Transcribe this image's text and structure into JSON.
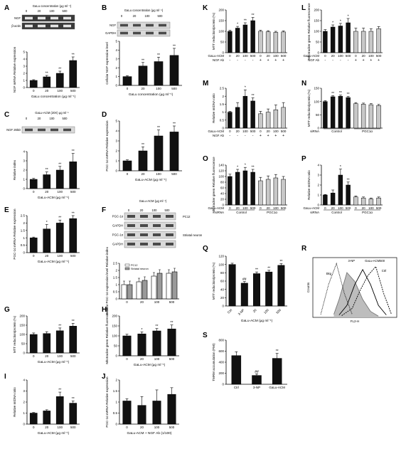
{
  "figure": {
    "note": ""
  },
  "colors": {
    "black_bar": "#111111",
    "gray_bar": "#c8c8c8",
    "gel_bg": "#3a3a3a",
    "gel_band": "#e6e6e6",
    "blot_bg": "#d9d9d9",
    "blot_band": "#4a4a4a"
  },
  "chart_data": [
    {
      "panel": "A",
      "type": "bar",
      "title": "GaLu concentration (μg ml⁻¹)",
      "gel_labels": [
        "NGF",
        "β-actin"
      ],
      "lane_labels": [
        "0",
        "20",
        "100",
        "500"
      ],
      "categories": [
        "0",
        "20",
        "100",
        "500"
      ],
      "values": [
        1.0,
        1.5,
        2.0,
        3.8
      ],
      "errors": [
        0.1,
        0.2,
        0.3,
        0.5
      ],
      "stars": [
        "",
        "**",
        "**",
        "**"
      ],
      "ylabel": "NGF mRNA Relative expression",
      "xlabel": "GaLu concentration (μg ml⁻¹)",
      "ylim": [
        0,
        5
      ],
      "yticks": [
        0,
        1,
        2,
        3,
        4,
        5
      ]
    },
    {
      "panel": "B",
      "type": "bar",
      "title": "GaLu concentration (μg ml⁻¹)",
      "gel_labels": [
        "NGF",
        "GAPDH"
      ],
      "lane_labels": [
        "0",
        "20",
        "100",
        "500"
      ],
      "categories": [
        "0",
        "20",
        "100",
        "500"
      ],
      "values": [
        1.0,
        2.2,
        2.7,
        3.4
      ],
      "errors": [
        0.1,
        0.4,
        0.5,
        0.8
      ],
      "stars": [
        "",
        "**",
        "**",
        "**"
      ],
      "ylabel": "Cellular NGF expression level",
      "xlabel": "GaLu concentration (μg ml⁻¹)",
      "ylim": [
        0,
        5
      ],
      "yticks": [
        0,
        1,
        2,
        3,
        4,
        5
      ]
    },
    {
      "panel": "C",
      "type": "bar",
      "title": "GaLu-ACM (20X) μg ml⁻¹",
      "gel_labels": [
        "NGF 26kD"
      ],
      "lane_labels": [
        "0",
        "20",
        "100",
        "500"
      ],
      "categories": [
        "0",
        "20",
        "100",
        "500"
      ],
      "values": [
        1.0,
        1.5,
        2.0,
        2.9
      ],
      "errors": [
        0.1,
        0.3,
        0.4,
        0.9
      ],
      "stars": [
        "",
        "**",
        "**",
        "**"
      ],
      "ylabel": "Relative index",
      "xlabel": "GaLu-ACM (μg ml⁻¹)",
      "ylim": [
        0,
        4
      ],
      "yticks": [
        0,
        1,
        2,
        3,
        4
      ]
    },
    {
      "panel": "D",
      "type": "bar",
      "title": "",
      "categories": [
        "0",
        "20",
        "100",
        "500"
      ],
      "values": [
        1.0,
        2.0,
        3.5,
        3.9
      ],
      "errors": [
        0.1,
        0.4,
        0.6,
        0.6
      ],
      "stars": [
        "",
        "**",
        "**",
        "**"
      ],
      "ylabel": "PGC-1α mRNA Relative expression",
      "xlabel": "GaLu-ACM (μg ml⁻¹)",
      "ylim": [
        0,
        5
      ],
      "yticks": [
        0,
        1,
        2,
        3,
        4,
        5
      ]
    },
    {
      "panel": "E",
      "type": "bar",
      "title": "",
      "categories": [
        "0",
        "20",
        "100",
        "500"
      ],
      "values": [
        1.0,
        1.6,
        2.0,
        2.3
      ],
      "errors": [
        0.05,
        0.3,
        0.2,
        0.2
      ],
      "stars": [
        "",
        "*",
        "**",
        "**"
      ],
      "ylabel": "PGC-1α mRNA Relative expression",
      "xlabel": "GaLu-ACM (μg ml⁻¹)",
      "ylim": [
        0,
        2.5
      ],
      "yticks": [
        0,
        0.5,
        1,
        1.5,
        2,
        2.5
      ]
    },
    {
      "panel": "F",
      "type": "bar",
      "title": "GaLu-ACM (μg ml⁻¹)",
      "gel_labels": [
        "PGC-1α",
        "GAPDH",
        "PGC-1α",
        "GAPDH"
      ],
      "lane_labels": [
        "0",
        "20",
        "100",
        "500"
      ],
      "blot_groups": [
        "PC12",
        "Striatal neuron"
      ],
      "categories": [
        "0",
        "20",
        "100",
        "500"
      ],
      "series": [
        {
          "name": "PC12",
          "values": [
            1.0,
            1.2,
            1.6,
            1.8
          ]
        },
        {
          "name": "Striatal neuron",
          "values": [
            1.0,
            1.3,
            1.8,
            1.9
          ]
        }
      ],
      "ylabel": "Cellular PGC-1α expression level Relative index",
      "xlabel": "",
      "ylim": [
        0,
        2.5
      ],
      "yticks": [
        0,
        0.5,
        1,
        1.5,
        2,
        2.5
      ]
    },
    {
      "panel": "G",
      "type": "bar",
      "title": "",
      "categories": [
        "0",
        "20",
        "100",
        "500"
      ],
      "values": [
        100,
        105,
        120,
        145
      ],
      "errors": [
        8,
        10,
        15,
        15
      ],
      "stars": [
        "",
        "",
        "**",
        "**"
      ],
      "ylabel": "MTT reduction/protein (%)",
      "xlabel": "GaLu-ACM (μg ml⁻¹)",
      "ylim": [
        0,
        200
      ],
      "yticks": [
        0,
        50,
        100,
        150,
        200
      ]
    },
    {
      "panel": "H",
      "type": "bar",
      "title": "",
      "categories": [
        "0",
        "20",
        "100",
        "500"
      ],
      "values": [
        100,
        110,
        125,
        135
      ],
      "errors": [
        8,
        10,
        12,
        20
      ],
      "stars": [
        "",
        "*",
        "**",
        "**"
      ],
      "ylabel": "Mitotracker green Relative fluorescence",
      "xlabel": "GaLu-ACM (μg ml⁻¹)",
      "ylim": [
        0,
        200
      ],
      "yticks": [
        0,
        50,
        100,
        150,
        200
      ]
    },
    {
      "panel": "I",
      "type": "bar",
      "title": "",
      "categories": [
        "0",
        "20",
        "100",
        "500"
      ],
      "values": [
        1.0,
        1.2,
        2.5,
        1.9
      ],
      "errors": [
        0.05,
        0.1,
        0.4,
        0.2
      ],
      "stars": [
        "",
        "",
        "**",
        "**"
      ],
      "ylabel": "Relative mtDNA ratio",
      "xlabel": "GaLu-ACM (μg ml⁻¹)",
      "ylim": [
        0,
        4
      ],
      "yticks": [
        0,
        1,
        2,
        3,
        4
      ]
    },
    {
      "panel": "J",
      "type": "bar",
      "title": "",
      "categories": [
        "0",
        "20",
        "100",
        "500"
      ],
      "values": [
        1.05,
        0.85,
        1.05,
        1.35
      ],
      "errors": [
        0.1,
        0.4,
        0.5,
        0.3
      ],
      "ylabel": "PGC-1α mRNA Relative expression",
      "xlabel": "GaLu-ACM + NGF Ab (1/100)",
      "ylim": [
        0,
        2
      ],
      "yticks": [
        0,
        0.5,
        1,
        1.5,
        2
      ]
    },
    {
      "panel": "K",
      "type": "bar",
      "title": "",
      "categories": [
        "0",
        "20",
        "100",
        "500",
        "0",
        "20",
        "100",
        "500"
      ],
      "values": [
        100,
        115,
        130,
        150,
        100,
        98,
        95,
        97
      ],
      "errors": [
        5,
        8,
        10,
        15,
        5,
        5,
        5,
        5
      ],
      "stars": [
        "",
        "*",
        "**",
        "**",
        "",
        "",
        "",
        ""
      ],
      "ylabel": "MTT reduction/protein (%)",
      "row_labels": [
        "GaLu-ACM",
        "NGF Ab"
      ],
      "ab_marks": [
        "-",
        "-",
        "-",
        "-",
        "+",
        "+",
        "+",
        "+"
      ],
      "ylim": [
        0,
        200
      ],
      "yticks": [
        0,
        50,
        100,
        150,
        200
      ]
    },
    {
      "panel": "L",
      "type": "bar",
      "title": "",
      "categories": [
        "0",
        "20",
        "100",
        "500",
        "0",
        "20",
        "100",
        "500"
      ],
      "values": [
        100,
        120,
        125,
        140,
        100,
        100,
        100,
        112
      ],
      "errors": [
        8,
        10,
        12,
        20,
        15,
        15,
        12,
        10
      ],
      "stars": [
        "",
        "*",
        "*",
        "*",
        "",
        "",
        "",
        ""
      ],
      "ylabel": "Mitotracker green Relative fluorescence",
      "row_labels": [
        "GaLu-ACM",
        "NGF Ab"
      ],
      "ab_marks": [
        "-",
        "-",
        "-",
        "-",
        "+",
        "+",
        "+",
        "+"
      ],
      "ylim": [
        0,
        200
      ],
      "yticks": [
        0,
        50,
        100,
        150,
        200
      ]
    },
    {
      "panel": "M",
      "type": "bar",
      "title": "",
      "categories": [
        "0",
        "20",
        "100",
        "500",
        "0",
        "20",
        "100",
        "500"
      ],
      "values": [
        1.0,
        1.3,
        2.0,
        1.7,
        0.9,
        1.0,
        1.15,
        1.3
      ],
      "errors": [
        0.05,
        0.3,
        0.4,
        0.2,
        0.15,
        0.2,
        0.3,
        0.3
      ],
      "stars": [
        "",
        "",
        "*",
        "**",
        "",
        "",
        "",
        ""
      ],
      "ylabel": "Relative mtDNA ratio",
      "row_labels": [
        "GaLu-ACM",
        "NGF Ab"
      ],
      "ab_marks": [
        "-",
        "-",
        "-",
        "-",
        "+",
        "+",
        "+",
        "+"
      ],
      "ylim": [
        0,
        2.5
      ],
      "yticks": [
        0,
        0.5,
        1,
        1.5,
        2,
        2.5
      ]
    },
    {
      "panel": "N",
      "type": "bar",
      "title": "",
      "categories": [
        "0",
        "20",
        "100",
        "500",
        "0",
        "20",
        "100",
        "500"
      ],
      "values": [
        100,
        118,
        120,
        115,
        92,
        90,
        88,
        85
      ],
      "errors": [
        3,
        4,
        4,
        4,
        4,
        4,
        4,
        4
      ],
      "stars": [
        "",
        "**",
        "**",
        "**",
        "",
        "",
        "",
        ""
      ],
      "ylabel": "MTT reduction/protein (%)",
      "row_labels": [
        "siRNA"
      ],
      "groups": [
        "Control",
        "PGC1α"
      ],
      "ylim": [
        0,
        150
      ],
      "yticks": [
        0,
        50,
        100,
        150
      ]
    },
    {
      "panel": "O",
      "type": "bar",
      "title": "",
      "categories": [
        "0",
        "20",
        "100",
        "500",
        "0",
        "20",
        "100",
        "500"
      ],
      "values": [
        100,
        115,
        120,
        115,
        85,
        90,
        95,
        90
      ],
      "errors": [
        8,
        10,
        12,
        10,
        12,
        12,
        12,
        10
      ],
      "stars": [
        "",
        "*",
        "*",
        "**",
        "",
        "",
        "",
        ""
      ],
      "ylabel": "Mitotracker green Relative fluorescence",
      "row_labels": [
        "GaLu-ACM",
        "siRNA"
      ],
      "groups": [
        "Control",
        "PGC1α"
      ],
      "ylim": [
        0,
        140
      ],
      "yticks": [
        0,
        20,
        40,
        60,
        80,
        100,
        120,
        140
      ]
    },
    {
      "panel": "P",
      "type": "bar",
      "title": "",
      "categories": [
        "0",
        "20",
        "100",
        "500",
        "0",
        "20",
        "100",
        "500"
      ],
      "values": [
        1.0,
        1.2,
        3.0,
        2.0,
        0.8,
        0.7,
        0.6,
        0.7
      ],
      "errors": [
        0.05,
        0.3,
        0.6,
        0.3,
        0.1,
        0.1,
        0.1,
        0.1
      ],
      "stars": [
        "",
        "",
        "*",
        "**",
        "",
        "",
        "",
        ""
      ],
      "ylabel": "Relative mtDNA ratio",
      "row_labels": [
        "GaLu-ACM",
        "siRNA"
      ],
      "groups": [
        "Control",
        "PGC1α"
      ],
      "ylim": [
        0,
        4
      ],
      "yticks": [
        0,
        1,
        2,
        3,
        4
      ]
    },
    {
      "panel": "Q",
      "type": "bar",
      "title": "",
      "categories": [
        "Ctrl",
        "3-NP",
        "20",
        "100",
        "500"
      ],
      "values": [
        100,
        55,
        78,
        82,
        98
      ],
      "errors": [
        3,
        4,
        4,
        4,
        4
      ],
      "stars": [
        "",
        "##",
        "**",
        "**",
        "**"
      ],
      "ylabel": "MTT reduction/protein (%)",
      "xlabel": "GaLu-ACM (μg ml⁻¹)",
      "ylim": [
        0,
        120
      ],
      "yticks": [
        0,
        20,
        40,
        60,
        80,
        100,
        120
      ]
    },
    {
      "panel": "R",
      "type": "line",
      "title": "",
      "series": [
        {
          "name": "3-NP",
          "label": "3-NP",
          "x": [
            0.8,
            1.0,
            1.3,
            1.6,
            1.9,
            2.2,
            2.5
          ],
          "y": [
            5,
            30,
            75,
            60,
            30,
            10,
            2
          ]
        },
        {
          "name": "GaLu-ACM500",
          "label": "GaLu-ACM500",
          "x": [
            1.0,
            1.3,
            1.6,
            1.9,
            2.2,
            2.5,
            2.8
          ],
          "y": [
            4,
            20,
            55,
            80,
            55,
            20,
            4
          ]
        },
        {
          "name": "Ctrl",
          "label": "Ctrl",
          "x": [
            1.1,
            1.5,
            1.8,
            2.1,
            2.4,
            2.7,
            3.0
          ],
          "y": [
            3,
            15,
            45,
            70,
            85,
            40,
            5
          ]
        },
        {
          "name": "Bkg",
          "label": "Bkg",
          "x": [
            0.3,
            0.6,
            0.9,
            1.2,
            1.5
          ],
          "y": [
            5,
            55,
            90,
            40,
            5
          ]
        }
      ],
      "ylabel": "Counts",
      "xlabel": "FL2-H"
    },
    {
      "panel": "S",
      "type": "bar",
      "title": "",
      "categories": [
        "Ctrl",
        "3-NP",
        "GaLu-ACM"
      ],
      "values": [
        520,
        160,
        470
      ],
      "errors": [
        70,
        30,
        90
      ],
      "stars": [
        "",
        "##",
        "**"
      ],
      "ylabel": "TMRM accumulation (FMI)",
      "xlabel": "",
      "ylim": [
        0,
        800
      ],
      "yticks": [
        0,
        200,
        400,
        600,
        800
      ]
    }
  ]
}
